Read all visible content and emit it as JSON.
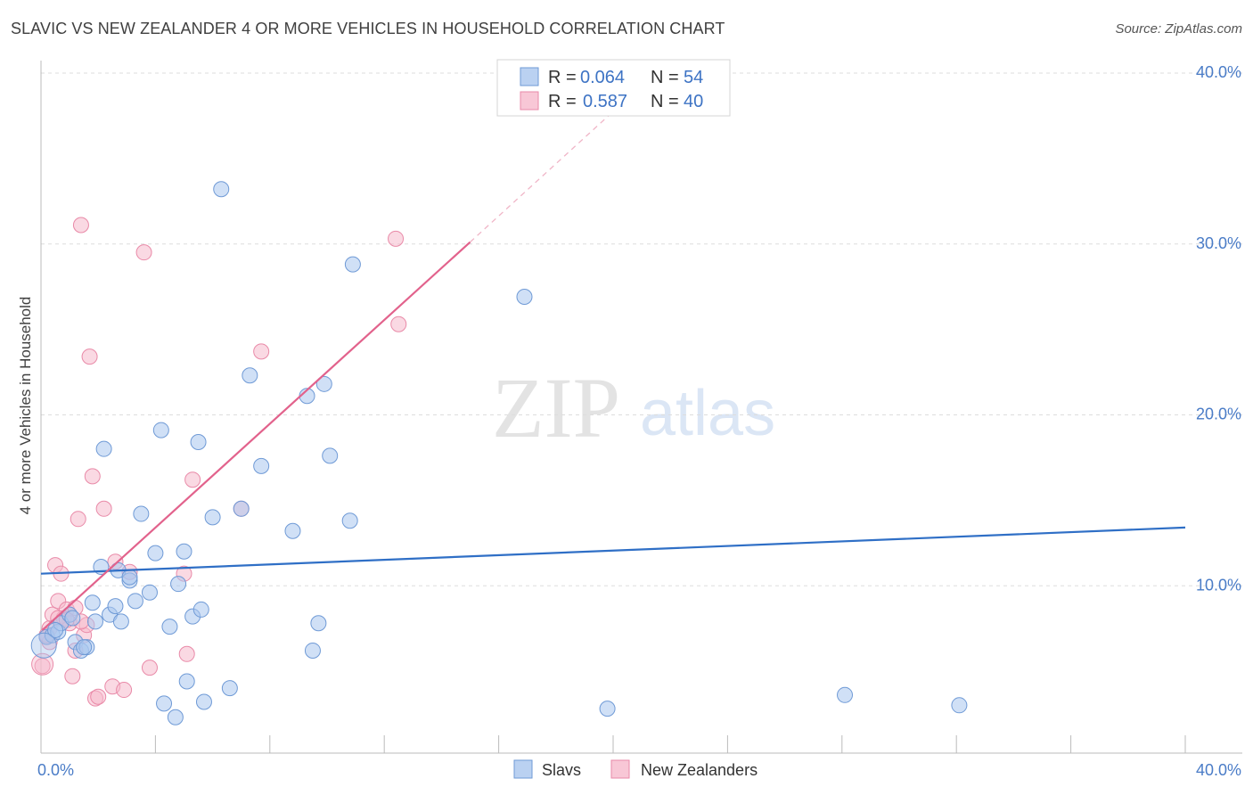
{
  "header": {
    "title": "SLAVIC VS NEW ZEALANDER 4 OR MORE VEHICLES IN HOUSEHOLD CORRELATION CHART",
    "source": "Source: ZipAtlas.com"
  },
  "watermark": {
    "zip": "ZIP",
    "atlas": "atlas"
  },
  "colors": {
    "slavs_fill": "#a9c6ee",
    "slavs_stroke": "#6f9ad6",
    "slavs_line": "#2f6fc6",
    "nz_fill": "#f6b9cc",
    "nz_stroke": "#e98aa8",
    "nz_line": "#e2628c",
    "grid": "#dddddd"
  },
  "legend": {
    "rows": [
      {
        "r_label": "R =",
        "r_value": "0.064",
        "n_label": "N =",
        "n_value": "54"
      },
      {
        "r_label": "R =",
        "r_value": "0.587",
        "n_label": "N =",
        "n_value": "40"
      }
    ]
  },
  "chart_data": {
    "type": "scatter",
    "title": "SLAVIC VS NEW ZEALANDER 4 OR MORE VEHICLES IN HOUSEHOLD CORRELATION CHART",
    "xlabel": "",
    "ylabel": "4 or more Vehicles in Household",
    "xlim": [
      0,
      40
    ],
    "ylim": [
      0,
      40
    ],
    "x_tick_labels": [
      "0.0%",
      "40.0%"
    ],
    "y_tick_labels": [
      "10.0%",
      "20.0%",
      "30.0%",
      "40.0%"
    ],
    "y_ticks": [
      10,
      20,
      30,
      40
    ],
    "legend_position": "bottom-center",
    "series": [
      {
        "name": "Slavs",
        "r": 0.064,
        "n": 54,
        "trend": {
          "x": [
            0,
            40
          ],
          "y": [
            10.5,
            13.2
          ]
        },
        "points": [
          [
            0.2,
            6.8
          ],
          [
            0.4,
            6.9
          ],
          [
            0.6,
            7.1
          ],
          [
            0.7,
            7.6
          ],
          [
            1.0,
            8.1
          ],
          [
            1.2,
            6.5
          ],
          [
            1.4,
            6.0
          ],
          [
            1.6,
            6.2
          ],
          [
            1.8,
            8.8
          ],
          [
            1.9,
            7.7
          ],
          [
            2.1,
            10.9
          ],
          [
            2.2,
            17.8
          ],
          [
            2.4,
            8.1
          ],
          [
            2.6,
            8.6
          ],
          [
            2.7,
            10.7
          ],
          [
            2.8,
            7.7
          ],
          [
            3.1,
            10.1
          ],
          [
            3.3,
            8.9
          ],
          [
            3.5,
            14.0
          ],
          [
            3.8,
            9.4
          ],
          [
            4.0,
            11.7
          ],
          [
            4.2,
            18.9
          ],
          [
            4.3,
            2.9
          ],
          [
            4.5,
            7.4
          ],
          [
            4.7,
            2.1
          ],
          [
            4.8,
            9.9
          ],
          [
            5.0,
            11.8
          ],
          [
            5.1,
            4.2
          ],
          [
            5.3,
            8.0
          ],
          [
            5.5,
            18.2
          ],
          [
            5.6,
            8.4
          ],
          [
            5.7,
            3.0
          ],
          [
            6.0,
            13.8
          ],
          [
            6.3,
            33.0
          ],
          [
            6.6,
            3.8
          ],
          [
            7.0,
            14.3
          ],
          [
            7.3,
            22.1
          ],
          [
            7.7,
            16.8
          ],
          [
            8.8,
            13.0
          ],
          [
            9.3,
            20.9
          ],
          [
            9.5,
            6.0
          ],
          [
            9.7,
            7.6
          ],
          [
            9.9,
            21.6
          ],
          [
            10.1,
            17.4
          ],
          [
            10.8,
            13.6
          ],
          [
            10.9,
            28.6
          ],
          [
            16.9,
            26.7
          ],
          [
            19.8,
            2.6
          ],
          [
            28.1,
            3.4
          ],
          [
            32.1,
            2.8
          ],
          [
            3.1,
            10.3
          ],
          [
            1.5,
            6.2
          ],
          [
            0.5,
            7.2
          ],
          [
            1.1,
            7.9
          ]
        ]
      },
      {
        "name": "New Zealanders",
        "r": 0.587,
        "n": 40,
        "trend": {
          "x": [
            0.05,
            15
          ],
          "y": [
            7.2,
            29.9
          ]
        },
        "trend_dashed": {
          "x": [
            15,
            20.3
          ],
          "y": [
            29.9,
            38.0
          ]
        },
        "points": [
          [
            0.05,
            5.1
          ],
          [
            0.2,
            6.8
          ],
          [
            0.3,
            7.3
          ],
          [
            0.4,
            8.1
          ],
          [
            0.5,
            11.0
          ],
          [
            0.6,
            8.9
          ],
          [
            0.7,
            10.5
          ],
          [
            0.8,
            7.9
          ],
          [
            0.9,
            8.4
          ],
          [
            1.0,
            7.6
          ],
          [
            1.1,
            4.5
          ],
          [
            1.2,
            8.5
          ],
          [
            1.3,
            13.7
          ],
          [
            1.4,
            30.9
          ],
          [
            1.5,
            6.9
          ],
          [
            1.6,
            7.5
          ],
          [
            1.7,
            23.2
          ],
          [
            1.8,
            16.2
          ],
          [
            1.9,
            3.2
          ],
          [
            2.0,
            3.3
          ],
          [
            2.2,
            14.3
          ],
          [
            2.5,
            3.9
          ],
          [
            2.6,
            11.2
          ],
          [
            2.9,
            3.7
          ],
          [
            3.1,
            10.6
          ],
          [
            3.6,
            29.3
          ],
          [
            3.8,
            5.0
          ],
          [
            5.0,
            10.5
          ],
          [
            5.1,
            5.8
          ],
          [
            5.3,
            16.0
          ],
          [
            7.0,
            14.3
          ],
          [
            7.7,
            23.5
          ],
          [
            12.4,
            30.1
          ],
          [
            12.5,
            25.1
          ],
          [
            0.3,
            6.5
          ],
          [
            1.2,
            6.0
          ],
          [
            0.6,
            7.9
          ],
          [
            0.9,
            7.8
          ],
          [
            1.4,
            7.7
          ],
          [
            0.2,
            6.9
          ]
        ]
      }
    ]
  },
  "bottom_legend": {
    "slavs": "Slavs",
    "nz": "New Zealanders"
  }
}
